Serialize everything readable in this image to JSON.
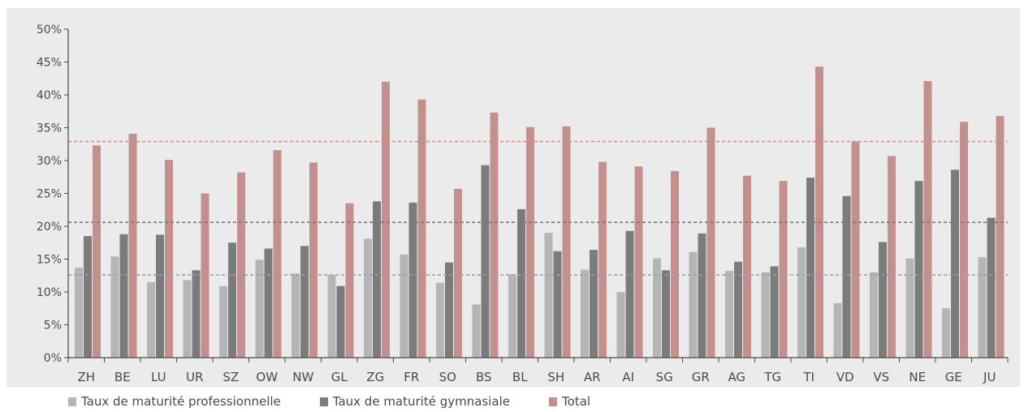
{
  "colors": {
    "background": "#ebebeb",
    "axis": "#4a4a4a",
    "text": "#4a4a4a",
    "series": [
      "#b5b5b5",
      "#7b7b7b",
      "#c4908e"
    ],
    "ref_lines": [
      "#c4908e",
      "#7b7b7b",
      "#a0a0a0"
    ]
  },
  "chart_data": {
    "type": "bar",
    "title": "",
    "xlabel": "",
    "ylabel": "",
    "ylim": [
      0,
      50
    ],
    "y_ticks": [
      0,
      5,
      10,
      15,
      20,
      25,
      30,
      35,
      40,
      45,
      50
    ],
    "y_tick_labels": [
      "0%",
      "5%",
      "10%",
      "15%",
      "20%",
      "25%",
      "30%",
      "35%",
      "40%",
      "45%",
      "50%"
    ],
    "grid": false,
    "legend_position": "bottom",
    "categories": [
      "ZH",
      "BE",
      "LU",
      "UR",
      "SZ",
      "OW",
      "NW",
      "GL",
      "ZG",
      "FR",
      "SO",
      "BS",
      "BL",
      "SH",
      "AR",
      "AI",
      "SG",
      "GR",
      "AG",
      "TG",
      "TI",
      "VD",
      "VS",
      "NE",
      "GE",
      "JU"
    ],
    "series": [
      {
        "name": "Taux de maturité professionnelle",
        "values": [
          13.7,
          15.4,
          11.5,
          11.8,
          10.9,
          14.9,
          12.8,
          12.6,
          18.1,
          15.7,
          11.4,
          8.1,
          12.7,
          19.0,
          13.4,
          10.0,
          15.1,
          16.1,
          13.2,
          13.0,
          16.8,
          8.3,
          13.0,
          15.1,
          7.5,
          15.3
        ]
      },
      {
        "name": "Taux de maturité gymnasiale",
        "values": [
          18.5,
          18.8,
          18.7,
          13.3,
          17.5,
          16.6,
          17.0,
          10.9,
          23.8,
          23.6,
          14.5,
          29.3,
          22.6,
          16.2,
          16.4,
          19.3,
          13.3,
          18.9,
          14.6,
          13.9,
          27.4,
          24.6,
          17.6,
          26.9,
          28.6,
          21.3
        ]
      },
      {
        "name": "Total",
        "values": [
          32.3,
          34.1,
          30.1,
          25.0,
          28.2,
          31.6,
          29.7,
          23.5,
          42.0,
          39.3,
          25.7,
          37.3,
          35.1,
          35.2,
          29.8,
          29.1,
          28.4,
          35.0,
          27.7,
          26.9,
          44.3,
          32.9,
          30.7,
          42.1,
          35.9,
          36.8
        ]
      }
    ],
    "reference_lines": [
      {
        "value": 32.9,
        "style": "dashed"
      },
      {
        "value": 20.6,
        "style": "dashed"
      },
      {
        "value": 12.6,
        "style": "dashed"
      }
    ]
  }
}
